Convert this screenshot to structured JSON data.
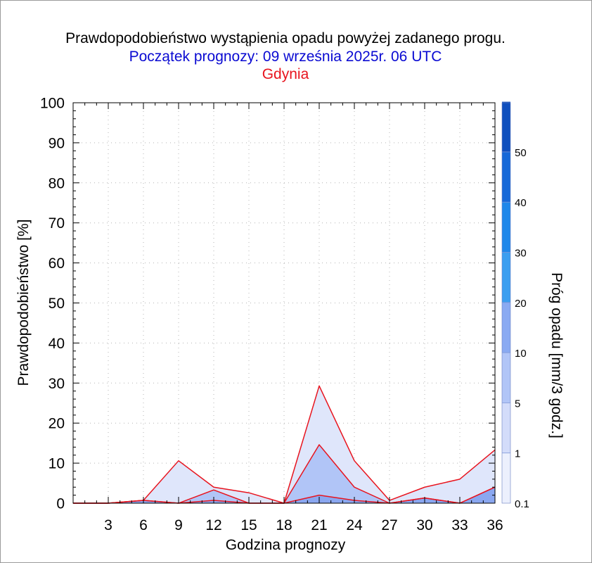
{
  "chart_data": {
    "type": "area",
    "title": "Prawdopodobieństwo wystąpienia opadu powyżej zadanego progu.",
    "subtitle": "Początek prognozy: 09 września 2025r. 06 UTC",
    "location": "Gdynia",
    "xlabel": "Godzina prognozy",
    "ylabel": "Prawdopodobieństwo [%]",
    "xlim": [
      0,
      36
    ],
    "ylim": [
      0,
      100
    ],
    "x": [
      0,
      3,
      6,
      9,
      12,
      15,
      18,
      21,
      24,
      27,
      30,
      33,
      36
    ],
    "x_tick_labels": [
      "3",
      "6",
      "9",
      "12",
      "15",
      "18",
      "21",
      "24",
      "27",
      "30",
      "33",
      "36"
    ],
    "y_tick_labels": [
      "0",
      "10",
      "20",
      "30",
      "40",
      "50",
      "60",
      "70",
      "80",
      "90",
      "100"
    ],
    "grid": true,
    "series": [
      {
        "name": "0.1",
        "values": [
          0,
          0,
          0.7,
          10.6,
          4,
          2.6,
          0,
          29.3,
          10.6,
          0.7,
          4,
          6,
          13.3
        ]
      },
      {
        "name": "1",
        "values": [
          0,
          0,
          0.7,
          0,
          3.3,
          0,
          0,
          14.6,
          4,
          0,
          1.3,
          0,
          4
        ]
      },
      {
        "name": "5",
        "values": [
          0,
          0,
          0.7,
          0,
          0.7,
          0,
          0,
          2,
          0.7,
          0,
          1.3,
          0,
          4
        ]
      }
    ],
    "colors": {
      "fill_0_1": "#dfe6fb",
      "fill_1": "#b1c5f7",
      "fill_5": "#8aa7f0",
      "line": "#e8141e"
    },
    "colorbar": {
      "label": "Próg opadu [mm/3 godz.]",
      "tick_labels": [
        "0.1",
        "1",
        "5",
        "10",
        "20",
        "30",
        "40",
        "50"
      ],
      "levels": [
        {
          "color": "#ecf0fd"
        },
        {
          "color": "#d3dcfa"
        },
        {
          "color": "#b1c5f7"
        },
        {
          "color": "#8aaaf2"
        },
        {
          "color": "#3b9ef0"
        },
        {
          "color": "#1f87ea"
        },
        {
          "color": "#1668d8"
        },
        {
          "color": "#0f4fbe"
        },
        {
          "color": "#0a3a9e"
        }
      ]
    }
  }
}
